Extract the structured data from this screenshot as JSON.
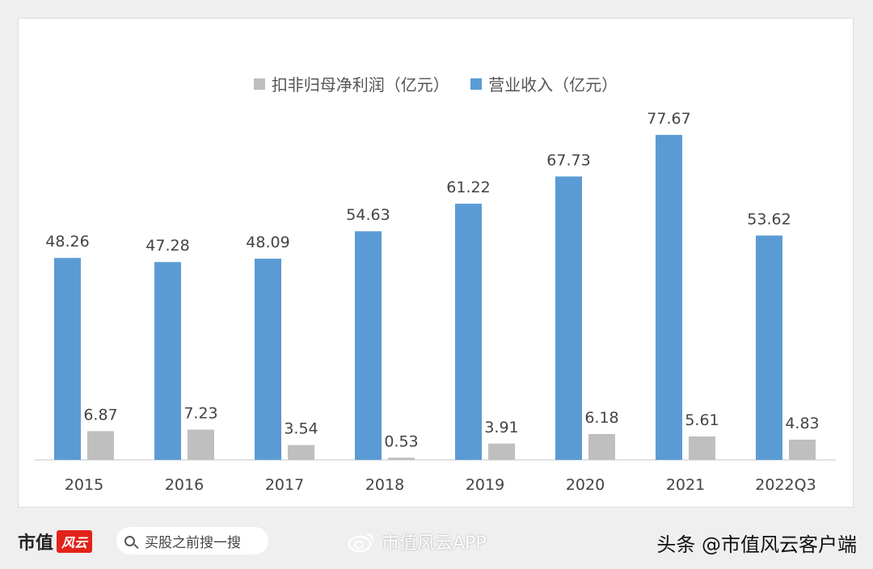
{
  "legend": [
    {
      "label": "扣非归母净利润（亿元）",
      "color": "#bfbfbf"
    },
    {
      "label": "营业收入（亿元）",
      "color": "#5b9bd5"
    }
  ],
  "chart_data": {
    "type": "bar",
    "categories": [
      "2015",
      "2016",
      "2017",
      "2018",
      "2019",
      "2020",
      "2021",
      "2022Q3"
    ],
    "series": [
      {
        "name": "营业收入（亿元）",
        "color": "#5b9bd5",
        "values": [
          48.26,
          47.28,
          48.09,
          54.63,
          61.22,
          67.73,
          77.67,
          53.62
        ]
      },
      {
        "name": "扣非归母净利润（亿元）",
        "color": "#bfbfbf",
        "values": [
          6.87,
          7.23,
          3.54,
          0.53,
          3.91,
          6.18,
          5.61,
          4.83
        ]
      }
    ],
    "ylim": [
      0,
      86
    ],
    "grid": false,
    "legend_position": "top",
    "data_labels": true
  },
  "footer": {
    "brand_text": "市值",
    "brand_logo": "风云",
    "search_text": "买股之前搜一搜",
    "weibo_text": "市值风云APP",
    "author_text": "头条 @市值风云客户端"
  }
}
